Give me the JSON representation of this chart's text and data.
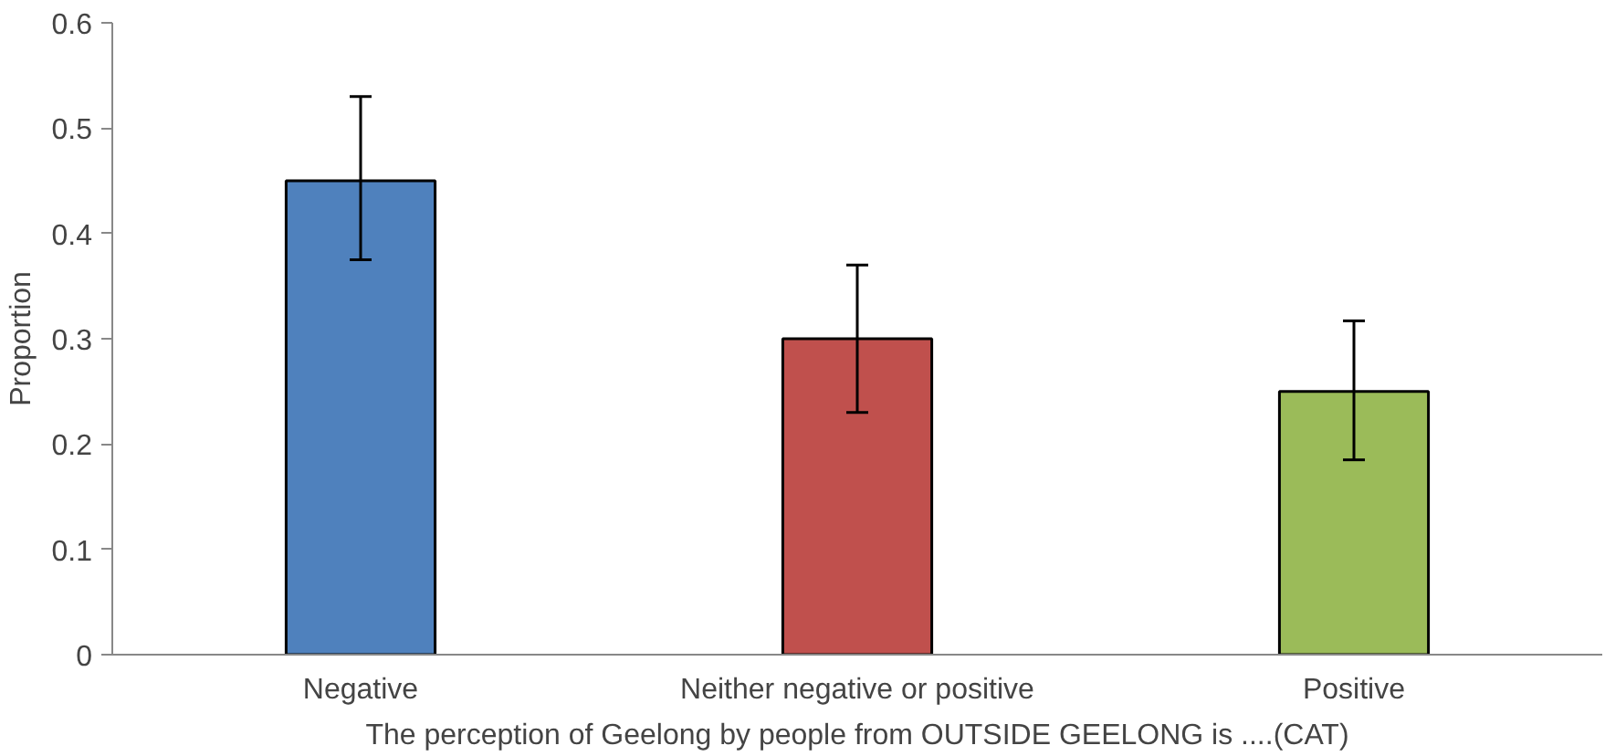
{
  "chart_data": {
    "type": "bar",
    "xlabel": "The perception of Geelong by people from OUTSIDE GEELONG is ....(CAT)",
    "ylabel": "Proportion",
    "categories": [
      "Negative",
      "Neither negative or positive",
      "Positive"
    ],
    "values": [
      0.45,
      0.3,
      0.25
    ],
    "colors": [
      "#4f81bd",
      "#c0504d",
      "#9bbb59"
    ],
    "errors": [
      [
        0.375,
        0.53
      ],
      [
        0.23,
        0.37
      ],
      [
        0.185,
        0.317
      ]
    ],
    "ylim": [
      0,
      0.6
    ],
    "yticks": [
      0,
      0.1,
      0.2,
      0.3,
      0.4,
      0.5,
      0.6
    ],
    "grid": false
  }
}
